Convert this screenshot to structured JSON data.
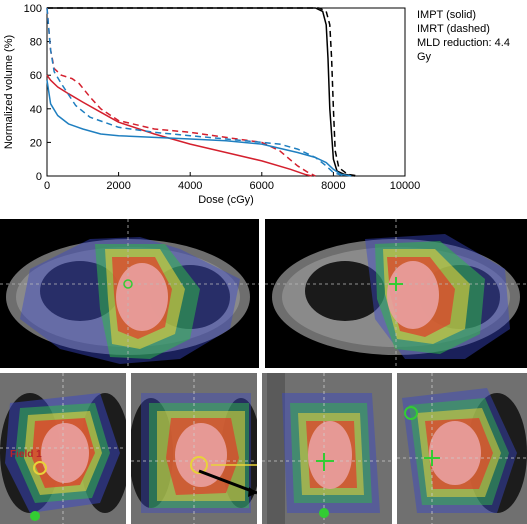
{
  "legend": {
    "line1": "IMPT (solid)",
    "line2": "IMRT (dashed)",
    "line3": "MLD reduction: 4.4 Gy"
  },
  "chart_data": {
    "type": "line",
    "xlabel": "Dose (cGy)",
    "ylabel": "Normalized volume (%)",
    "xlim": [
      0,
      10000
    ],
    "ylim": [
      0,
      100
    ],
    "xticks": [
      "0",
      "2000",
      "4000",
      "6000",
      "8000",
      "10000"
    ],
    "yticks": [
      "0",
      "20",
      "40",
      "60",
      "80",
      "100"
    ],
    "grid": false,
    "series": [
      {
        "style": "solid",
        "color": "#000000",
        "x": [
          0,
          150,
          300,
          2000,
          6000,
          7500,
          7700,
          7800,
          7850,
          7900,
          8000,
          8100,
          8300,
          8600
        ],
        "y": [
          100,
          100,
          100,
          100,
          100,
          100,
          98,
          90,
          70,
          40,
          10,
          3,
          1,
          0
        ]
      },
      {
        "style": "dashed",
        "color": "#000000",
        "x": [
          0,
          150,
          300,
          2000,
          6000,
          7600,
          7800,
          7900,
          7950,
          8000,
          8050,
          8150,
          8400,
          8700
        ],
        "y": [
          100,
          100,
          100,
          100,
          100,
          100,
          98,
          90,
          70,
          40,
          15,
          5,
          1,
          0
        ]
      },
      {
        "style": "solid",
        "color": "#d4202e",
        "x": [
          0,
          100,
          300,
          600,
          1000,
          1500,
          2000,
          3000,
          4000,
          5000,
          6000,
          6800,
          7200,
          7400
        ],
        "y": [
          60,
          57,
          53,
          49,
          44,
          38,
          32,
          25,
          19,
          14,
          9,
          4,
          1,
          0
        ]
      },
      {
        "style": "dashed",
        "color": "#d4202e",
        "x": [
          0,
          100,
          200,
          400,
          700,
          900,
          1200,
          1500,
          2000,
          3000,
          4000,
          5000,
          6000,
          6500,
          7000,
          7300,
          7500
        ],
        "y": [
          100,
          75,
          64,
          60,
          58,
          55,
          47,
          40,
          33,
          28,
          26,
          23,
          20,
          15,
          6,
          2,
          0
        ]
      },
      {
        "style": "solid",
        "color": "#1f7fc0",
        "x": [
          0,
          100,
          300,
          600,
          1000,
          1500,
          2000,
          3000,
          4000,
          5000,
          6000,
          7000,
          7500,
          7800,
          8000,
          8200,
          8500
        ],
        "y": [
          57,
          43,
          36,
          31,
          28,
          25,
          24,
          23,
          22,
          21,
          19,
          14,
          11,
          8,
          4,
          1,
          0
        ]
      },
      {
        "style": "dashed",
        "color": "#1f7fc0",
        "x": [
          0,
          100,
          200,
          400,
          800,
          1200,
          2000,
          3000,
          4000,
          5000,
          6000,
          6500,
          7000,
          7500,
          7800,
          8000,
          8300
        ],
        "y": [
          100,
          75,
          62,
          55,
          42,
          35,
          29,
          26,
          24,
          22,
          20,
          19,
          16,
          11,
          6,
          2,
          0
        ]
      }
    ]
  },
  "images": {
    "axial_left": "axial-dose-map",
    "axial_right": "axial-dose-map",
    "field_label": "Field 1"
  }
}
